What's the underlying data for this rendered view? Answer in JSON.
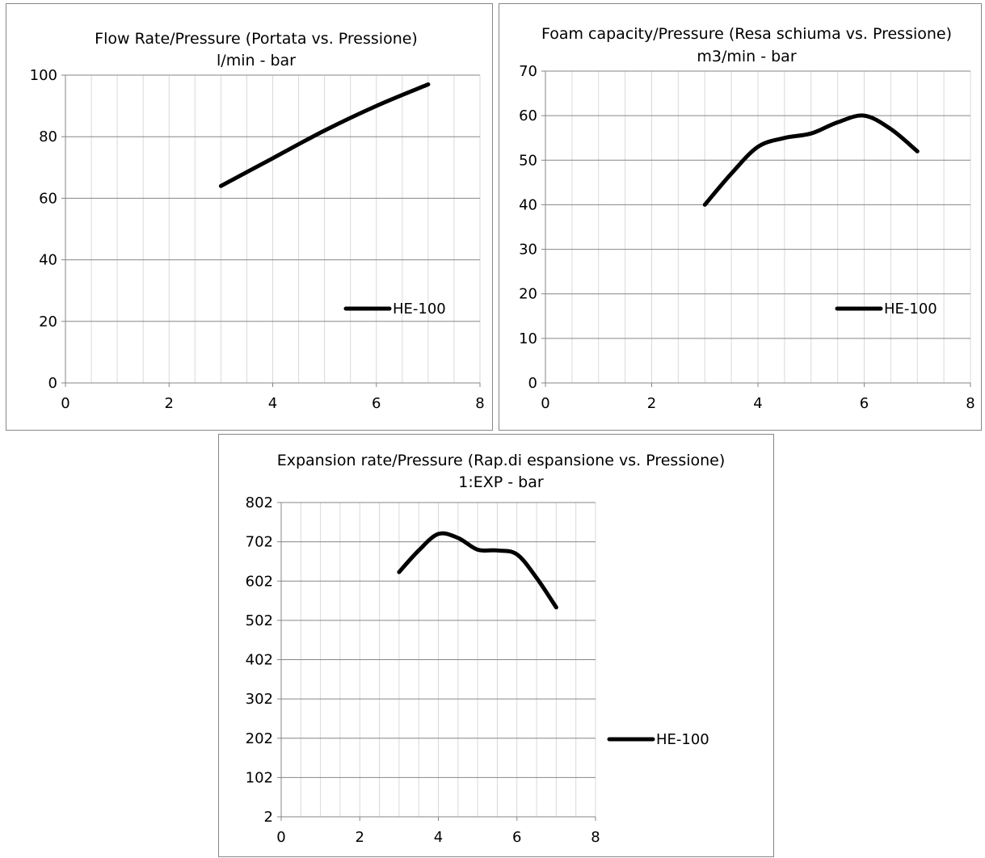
{
  "chart_data": [
    {
      "type": "line",
      "title": "Flow Rate/Pressure (Portata vs. Pressione)",
      "subtitle": "l/min - bar",
      "xlim": [
        0,
        8
      ],
      "ylim": [
        0,
        100
      ],
      "x_ticks": [
        "0",
        "2",
        "4",
        "6",
        "8"
      ],
      "y_ticks": [
        "0",
        "20",
        "40",
        "60",
        "80",
        "100"
      ],
      "grid": true,
      "legend_position": "right",
      "series": [
        {
          "name": "HE-100",
          "x": [
            3,
            4,
            5,
            6,
            7
          ],
          "y": [
            64,
            73,
            82,
            90,
            97
          ]
        }
      ]
    },
    {
      "type": "line",
      "title": "Foam capacity/Pressure (Resa schiuma vs. Pressione)",
      "subtitle": "m3/min - bar",
      "xlim": [
        0,
        8
      ],
      "ylim": [
        0,
        70
      ],
      "x_ticks": [
        "0",
        "2",
        "4",
        "6",
        "8"
      ],
      "y_ticks": [
        "0",
        "10",
        "20",
        "30",
        "40",
        "50",
        "60",
        "70"
      ],
      "grid": true,
      "legend_position": "right",
      "series": [
        {
          "name": "HE-100",
          "x": [
            3,
            3.5,
            4,
            4.5,
            5,
            5.5,
            6,
            6.5,
            7
          ],
          "y": [
            40,
            47,
            53,
            55,
            56,
            58.5,
            60,
            57,
            52
          ]
        }
      ]
    },
    {
      "type": "line",
      "title": "Expansion rate/Pressure (Rap.di espansione vs. Pressione)",
      "subtitle": "1:EXP - bar",
      "xlim": [
        0,
        8
      ],
      "ylim": [
        2,
        802
      ],
      "x_ticks": [
        "0",
        "2",
        "4",
        "6",
        "8"
      ],
      "y_ticks": [
        "2",
        "102",
        "202",
        "302",
        "402",
        "502",
        "602",
        "702",
        "802"
      ],
      "grid": true,
      "legend_position": "right",
      "series": [
        {
          "name": "HE-100",
          "x": [
            3,
            3.5,
            4,
            4.5,
            5,
            5.5,
            6,
            6.5,
            7
          ],
          "y": [
            625,
            680,
            722,
            712,
            682,
            680,
            670,
            610,
            535
          ]
        }
      ]
    }
  ]
}
